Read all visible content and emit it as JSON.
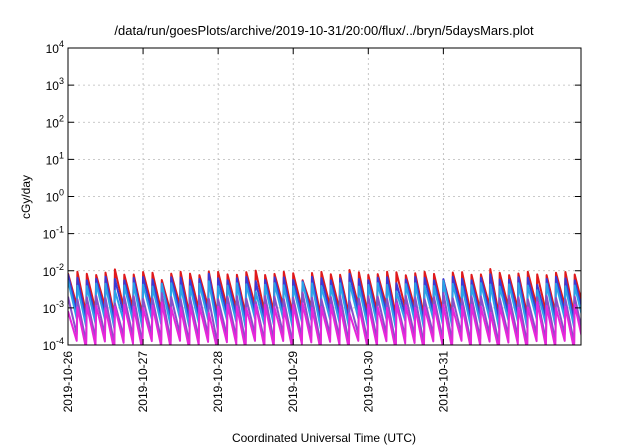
{
  "chart_data": {
    "type": "line",
    "title": "/data/run/goesPlots/archive/2019-10-31/20:00/flux/../bryn/5daysMars.plot",
    "xlabel": "Coordinated Universal Time (UTC)",
    "ylabel": "cGy/day",
    "yscale": "log",
    "ylim": [
      0.0001,
      10000
    ],
    "yticks": [
      {
        "base": "10",
        "exp": "-4"
      },
      {
        "base": "10",
        "exp": "-3"
      },
      {
        "base": "10",
        "exp": "-2"
      },
      {
        "base": "10",
        "exp": "-1"
      },
      {
        "base": "10",
        "exp": "0"
      },
      {
        "base": "10",
        "exp": "1"
      },
      {
        "base": "10",
        "exp": "2"
      },
      {
        "base": "10",
        "exp": "3"
      },
      {
        "base": "10",
        "exp": "4"
      }
    ],
    "xlim": [
      "2019-10-26",
      "2019-11-01T20:00"
    ],
    "xticks": [
      "2019-10-26",
      "2019-10-27",
      "2019-10-28",
      "2019-10-29",
      "2019-10-30",
      "2019-10-31"
    ],
    "grid": true,
    "teeth_per_day": 8,
    "series": [
      {
        "color": "#e0191b",
        "tooth_high": 0.0085,
        "tooth_low": 0.0009
      },
      {
        "color": "#3a3ad6",
        "tooth_high": 0.0062,
        "tooth_low": 0.0006
      },
      {
        "color": "#2ba3e8",
        "tooth_high": 0.0042,
        "tooth_low": 0.0004
      },
      {
        "color": "#8a4fc9",
        "tooth_high": 0.0019,
        "tooth_low": 0.00015
      },
      {
        "color": "#e626d9",
        "tooth_high": 0.0011,
        "tooth_low": 0.0001
      }
    ]
  }
}
